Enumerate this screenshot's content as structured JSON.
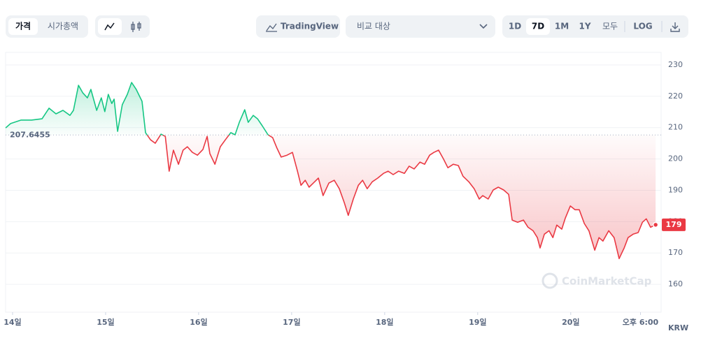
{
  "toolbar": {
    "tabs": [
      "가격",
      "시가총액"
    ],
    "tradingview": "TradingView",
    "compare": "비교 대상",
    "ranges": [
      "1D",
      "7D",
      "1M",
      "1Y",
      "모두"
    ],
    "log": "LOG"
  },
  "chart_data": {
    "type": "line",
    "x": [
      -1.8,
      -0.5,
      2.2,
      4.9,
      7.6,
      9.4,
      11.2,
      13.0,
      14.8,
      15.7,
      17.0,
      18.1,
      19.3,
      20.2,
      21.7,
      22.9,
      23.8,
      24.7,
      25.6,
      26.2,
      27.1,
      28.3,
      29.6,
      30.7,
      31.9,
      33.4,
      34.3,
      35.6,
      36.8,
      38.3,
      39.4,
      40.4,
      41.5,
      42.8,
      44.0,
      45.1,
      46.4,
      47.7,
      49.1,
      50.2,
      50.9,
      52.2,
      53.6,
      54.9,
      56.3,
      57.4,
      58.5,
      59.9,
      60.8,
      62.1,
      63.2,
      64.4,
      65.9,
      67.1,
      68.2,
      69.3,
      70.8,
      72.2,
      73.5,
      74.4,
      75.5,
      76.5,
      77.6,
      78.9,
      80.1,
      81.6,
      83.0,
      84.3,
      85.6,
      86.6,
      87.9,
      89.2,
      90.3,
      91.5,
      92.8,
      94.2,
      95.7,
      96.9,
      98.2,
      99.6,
      101.1,
      102.3,
      103.6,
      105.1,
      106.3,
      107.6,
      108.7,
      109.9,
      111.2,
      112.3,
      113.7,
      115.0,
      116.2,
      117.7,
      119.1,
      120.4,
      121.3,
      122.7,
      124.0,
      125.3,
      126.7,
      128.0,
      128.9,
      130.3,
      131.8,
      133.0,
      134.3,
      135.4,
      136.1,
      137.2,
      138.4,
      139.4,
      140.4,
      141.7,
      142.6,
      143.9,
      145.1,
      146.2,
      147.5,
      148.7,
      150.2,
      151.3,
      152.3,
      153.8,
      155.2,
      156.5,
      157.8,
      158.8,
      160.1,
      161.4,
      162.5,
      163.5,
      164.6,
      165.9
    ],
    "values": [
      209.9,
      211.3,
      212.4,
      212.4,
      212.8,
      216.2,
      214.4,
      215.5,
      213.9,
      215.5,
      223.5,
      221.1,
      219.5,
      222.2,
      215.5,
      219.5,
      215.1,
      220.6,
      217.7,
      219.1,
      208.8,
      217.3,
      220.6,
      224.4,
      222.2,
      218.4,
      208.4,
      206.1,
      205.0,
      207.9,
      207.2,
      196.1,
      202.8,
      198.3,
      202.8,
      203.9,
      202.1,
      201.2,
      203.0,
      207.2,
      201.7,
      198.3,
      203.9,
      206.1,
      208.4,
      207.7,
      211.7,
      215.7,
      211.7,
      213.9,
      212.8,
      210.6,
      207.7,
      206.8,
      203.5,
      200.6,
      201.2,
      202.1,
      196.1,
      191.6,
      193.2,
      191.0,
      192.3,
      193.9,
      188.3,
      192.3,
      193.2,
      190.5,
      186.0,
      182.0,
      187.2,
      191.6,
      193.2,
      190.5,
      192.7,
      193.9,
      195.4,
      196.1,
      195.0,
      196.1,
      195.4,
      197.7,
      196.8,
      199.0,
      198.3,
      201.2,
      202.1,
      202.8,
      199.9,
      197.2,
      198.3,
      197.9,
      194.5,
      192.7,
      190.5,
      187.2,
      188.3,
      187.2,
      190.1,
      191.0,
      190.1,
      188.7,
      180.5,
      179.8,
      180.5,
      178.2,
      177.1,
      174.9,
      171.6,
      176.0,
      177.1,
      174.9,
      178.9,
      177.6,
      181.1,
      185.0,
      183.8,
      183.8,
      179.4,
      177.1,
      170.9,
      174.9,
      173.8,
      177.1,
      174.9,
      168.2,
      171.6,
      174.9,
      176.0,
      176.5,
      179.8,
      180.9,
      178.2,
      179.0
    ],
    "last_value_label": "179",
    "baseline": 207.6455,
    "up_color": "#16c784",
    "down_color": "#ea3943",
    "xlim": [
      -1.8,
      166.6
    ],
    "xticks": [
      {
        "value": 0,
        "label": "14일"
      },
      {
        "value": 24,
        "label": "15일"
      },
      {
        "value": 48,
        "label": "16일"
      },
      {
        "value": 72,
        "label": "17일"
      },
      {
        "value": 96,
        "label": "18일"
      },
      {
        "value": 120,
        "label": "19일"
      },
      {
        "value": 144,
        "label": "20일"
      },
      {
        "value": 162,
        "label": "오후 6:00"
      }
    ],
    "ylim": [
      152,
      234
    ],
    "yticks": [
      160,
      170,
      180,
      190,
      200,
      210,
      220,
      230
    ],
    "y_unit": "KRW",
    "watermark": "CoinMarketCap",
    "grid": true
  }
}
